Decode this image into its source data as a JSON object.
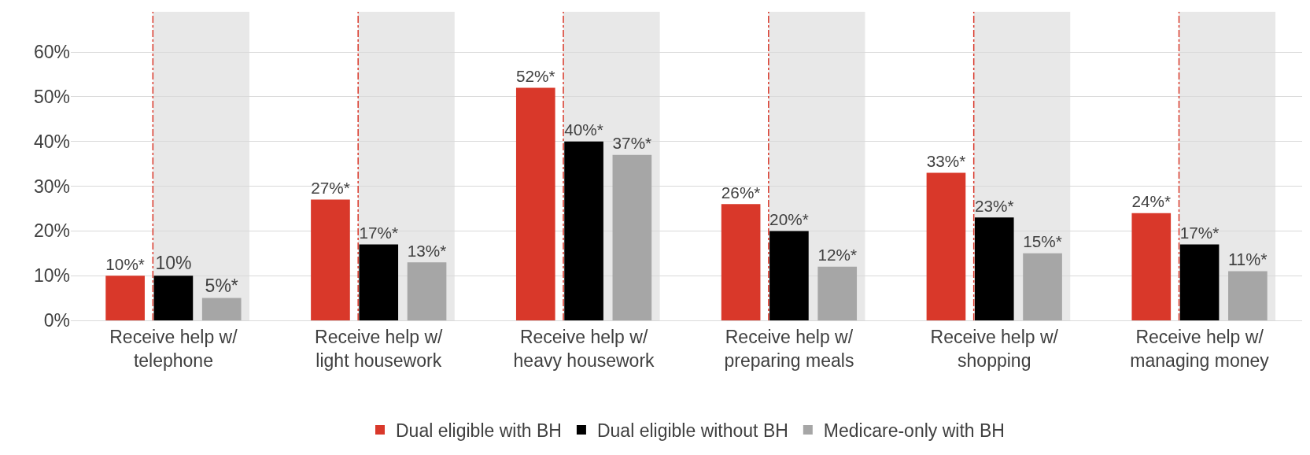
{
  "chart_data": {
    "type": "bar",
    "categories": [
      "Receive help w/\ntelephone",
      "Receive help w/\nlight housework",
      "Receive help w/\nheavy housework",
      "Receive help w/\npreparing meals",
      "Receive help w/\nshopping",
      "Receive help w/\nmanaging money"
    ],
    "series": [
      {
        "name": "Dual eligible with BH",
        "color": "#d9382a",
        "values": [
          10,
          27,
          52,
          26,
          33,
          24
        ],
        "value_labels": [
          "10%*",
          "27%*",
          "52%*",
          "26%*",
          "33%*",
          "24%*"
        ]
      },
      {
        "name": "Dual eligible without BH",
        "color": "#000000",
        "values": [
          10,
          17,
          40,
          20,
          23,
          17
        ],
        "value_labels": [
          "10%",
          "17%*",
          "40%*",
          "20%*",
          "23%*",
          "17%*"
        ]
      },
      {
        "name": "Medicare-only with BH",
        "color": "#a6a6a6",
        "values": [
          5,
          13,
          37,
          12,
          15,
          11
        ],
        "value_labels": [
          "5%*",
          "13%*",
          "37%*",
          "12%*",
          "15%*",
          "11%*"
        ]
      }
    ],
    "ylim": [
      0,
      69
    ],
    "yticks": [
      {
        "value": 0,
        "label": "0%"
      },
      {
        "value": 10,
        "label": "10%"
      },
      {
        "value": 20,
        "label": "20%"
      },
      {
        "value": 30,
        "label": "30%"
      },
      {
        "value": 40,
        "label": "40%"
      },
      {
        "value": 50,
        "label": "50%"
      },
      {
        "value": 60,
        "label": "60%"
      }
    ],
    "grid": "y",
    "legend": "bottom",
    "bands": [
      {
        "axis": "x",
        "from": "Receive help w/\ntelephone",
        "to": "Receive help w/\ntelephone",
        "color": "#e8e8e8"
      },
      {
        "axis": "x",
        "from": "Receive help w/\nlight housework",
        "to": "Receive help w/\nlight housework",
        "color": "#e8e8e8"
      },
      {
        "axis": "x",
        "from": "Receive help w/\nheavy housework",
        "to": "Receive help w/\nheavy housework",
        "color": "#e8e8e8"
      },
      {
        "axis": "x",
        "from": "Receive help w/\npreparing meals",
        "to": "Receive help w/\npreparing meals",
        "color": "#e8e8e8"
      },
      {
        "axis": "x",
        "from": "Receive help w/\nshopping",
        "to": "Receive help w/\nshopping",
        "color": "#e8e8e8"
      },
      {
        "axis": "x",
        "from": "Receive help w/\nmanaging money",
        "to": "Receive help w/\nmanaging money",
        "color": "#e8e8e8"
      }
    ],
    "ref_lines": [
      {
        "axis": "x",
        "value": "Receive help w/\ntelephone",
        "color": "#d9382a",
        "line_style": "dashdot"
      },
      {
        "axis": "x",
        "value": "Receive help w/\nlight housework",
        "color": "#d9382a",
        "line_style": "dashdot"
      },
      {
        "axis": "x",
        "value": "Receive help w/\nheavy housework",
        "color": "#d9382a",
        "line_style": "dashdot"
      },
      {
        "axis": "x",
        "value": "Receive help w/\npreparing meals",
        "color": "#d9382a",
        "line_style": "dashdot"
      },
      {
        "axis": "x",
        "value": "Receive help w/\nshopping",
        "color": "#d9382a",
        "line_style": "dashdot"
      },
      {
        "axis": "x",
        "value": "Receive help w/\nmanaging money",
        "color": "#d9382a",
        "line_style": "dashdot"
      }
    ]
  }
}
